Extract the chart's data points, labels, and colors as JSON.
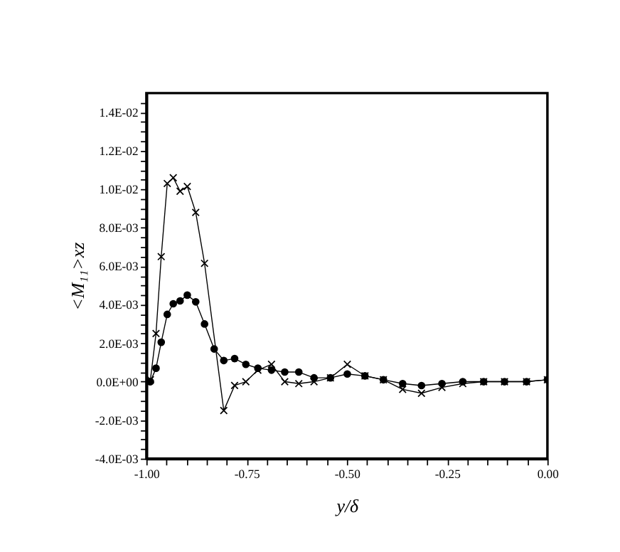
{
  "chart_data": {
    "type": "line",
    "xlabel": "y/δ",
    "ylabel": "<M₁₁>xz",
    "xlim": [
      -1.0,
      0.0
    ],
    "ylim": [
      -0.004,
      0.015
    ],
    "xticks": [
      {
        "value": -1.0,
        "label": "-1.00"
      },
      {
        "value": -0.95,
        "label": null
      },
      {
        "value": -0.9,
        "label": null
      },
      {
        "value": -0.85,
        "label": null
      },
      {
        "value": -0.8,
        "label": null
      },
      {
        "value": -0.75,
        "label": "-0.75"
      },
      {
        "value": -0.7,
        "label": null
      },
      {
        "value": -0.65,
        "label": null
      },
      {
        "value": -0.6,
        "label": null
      },
      {
        "value": -0.55,
        "label": null
      },
      {
        "value": -0.5,
        "label": "-0.50"
      },
      {
        "value": -0.45,
        "label": null
      },
      {
        "value": -0.4,
        "label": null
      },
      {
        "value": -0.35,
        "label": null
      },
      {
        "value": -0.3,
        "label": null
      },
      {
        "value": -0.25,
        "label": "-0.25"
      },
      {
        "value": -0.2,
        "label": null
      },
      {
        "value": -0.15,
        "label": null
      },
      {
        "value": -0.1,
        "label": null
      },
      {
        "value": -0.05,
        "label": null
      },
      {
        "value": 0.0,
        "label": "0.00"
      }
    ],
    "yticks": [
      {
        "value": -0.004,
        "label": "-4.0E-03"
      },
      {
        "value": -0.0035,
        "label": null
      },
      {
        "value": -0.003,
        "label": null
      },
      {
        "value": -0.0025,
        "label": null
      },
      {
        "value": -0.002,
        "label": "-2.0E-03"
      },
      {
        "value": -0.0015,
        "label": null
      },
      {
        "value": -0.001,
        "label": null
      },
      {
        "value": -0.0005,
        "label": null
      },
      {
        "value": 0.0,
        "label": "0.0E+00"
      },
      {
        "value": 0.0005,
        "label": null
      },
      {
        "value": 0.001,
        "label": null
      },
      {
        "value": 0.0015,
        "label": null
      },
      {
        "value": 0.002,
        "label": "2.0E-03"
      },
      {
        "value": 0.0025,
        "label": null
      },
      {
        "value": 0.003,
        "label": null
      },
      {
        "value": 0.0035,
        "label": null
      },
      {
        "value": 0.004,
        "label": "4.0E-03"
      },
      {
        "value": 0.0045,
        "label": null
      },
      {
        "value": 0.005,
        "label": null
      },
      {
        "value": 0.0055,
        "label": null
      },
      {
        "value": 0.006,
        "label": "6.0E-03"
      },
      {
        "value": 0.0065,
        "label": null
      },
      {
        "value": 0.007,
        "label": null
      },
      {
        "value": 0.0075,
        "label": null
      },
      {
        "value": 0.008,
        "label": "8.0E-03"
      },
      {
        "value": 0.0085,
        "label": null
      },
      {
        "value": 0.009,
        "label": null
      },
      {
        "value": 0.0095,
        "label": null
      },
      {
        "value": 0.01,
        "label": "1.0E-02"
      },
      {
        "value": 0.0105,
        "label": null
      },
      {
        "value": 0.011,
        "label": null
      },
      {
        "value": 0.0115,
        "label": null
      },
      {
        "value": 0.012,
        "label": "1.2E-02"
      },
      {
        "value": 0.0125,
        "label": null
      },
      {
        "value": 0.013,
        "label": null
      },
      {
        "value": 0.0135,
        "label": null
      },
      {
        "value": 0.014,
        "label": "1.4E-02"
      },
      {
        "value": 0.0145,
        "label": null
      }
    ],
    "grid": false,
    "line_style": "solid",
    "series": [
      {
        "color": "#000000",
        "marker": "circle",
        "x": [
          -1.0,
          -0.99,
          -0.976,
          -0.963,
          -0.948,
          -0.933,
          -0.916,
          -0.898,
          -0.877,
          -0.855,
          -0.831,
          -0.807,
          -0.78,
          -0.752,
          -0.722,
          -0.688,
          -0.655,
          -0.62,
          -0.582,
          -0.541,
          -0.499,
          -0.455,
          -0.409,
          -0.361,
          -0.314,
          -0.263,
          -0.211,
          -0.159,
          -0.107,
          -0.052,
          0.0
        ],
        "values": [
          0.0,
          0.0,
          0.0007,
          0.00205,
          0.0035,
          0.00405,
          0.0042,
          0.0045,
          0.00415,
          0.003,
          0.0017,
          0.0011,
          0.0012,
          0.0009,
          0.0007,
          0.0006,
          0.0005,
          0.0005,
          0.0002,
          0.0002,
          0.0004,
          0.0003,
          0.0001,
          -0.0001,
          -0.0002,
          -0.0001,
          0.0,
          0.0,
          0.0,
          0.0,
          0.0001
        ]
      },
      {
        "color": "#000000",
        "marker": "cross",
        "x": [
          -1.0,
          -0.99,
          -0.976,
          -0.963,
          -0.948,
          -0.933,
          -0.916,
          -0.898,
          -0.877,
          -0.855,
          -0.807,
          -0.78,
          -0.752,
          -0.722,
          -0.688,
          -0.655,
          -0.62,
          -0.582,
          -0.541,
          -0.499,
          -0.455,
          -0.409,
          -0.361,
          -0.314,
          -0.263,
          -0.211,
          -0.159,
          -0.107,
          -0.052,
          0.0
        ],
        "values": [
          0.0,
          0.0001,
          0.0025,
          0.0065,
          0.0103,
          0.0106,
          0.0099,
          0.01015,
          0.0088,
          0.00615,
          -0.0015,
          -0.0002,
          0.0,
          0.0006,
          0.0009,
          0.0,
          -0.0001,
          0.0,
          0.0002,
          0.0009,
          0.0003,
          0.0001,
          -0.0004,
          -0.0006,
          -0.0003,
          -0.0001,
          0.0,
          0.0,
          0.0,
          0.0001
        ]
      }
    ]
  }
}
